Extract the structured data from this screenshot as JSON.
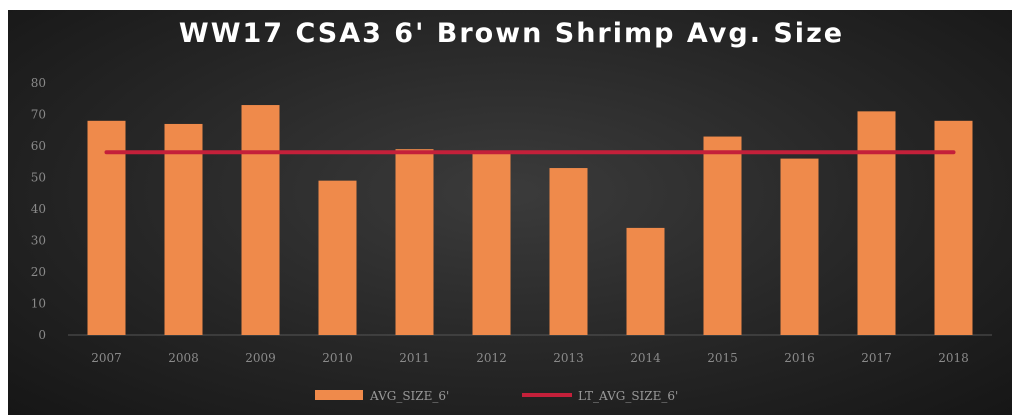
{
  "chart_data": {
    "type": "bar",
    "title": "WW17 CSA3 6' Brown Shrimp Avg. Size",
    "xlabel": "",
    "ylabel": "",
    "categories": [
      "2007",
      "2008",
      "2009",
      "2010",
      "2011",
      "2012",
      "2013",
      "2014",
      "2015",
      "2016",
      "2017",
      "2018"
    ],
    "series": [
      {
        "name": "AVG_SIZE_6'",
        "type": "bar",
        "color": "#ef8a4b",
        "values": [
          68,
          67,
          73,
          49,
          59,
          58,
          53,
          34,
          63,
          56,
          71,
          68
        ]
      },
      {
        "name": "LT_AVG_SIZE_6'",
        "type": "line",
        "color": "#c4203a",
        "values": [
          58,
          58,
          58,
          58,
          58,
          58,
          58,
          58,
          58,
          58,
          58,
          58
        ]
      }
    ],
    "ylim": [
      0,
      80
    ],
    "yticks": [
      0,
      10,
      20,
      30,
      40,
      50,
      60,
      70,
      80
    ],
    "grid": false,
    "legend": "bottom-center",
    "background": "#2a2a2a"
  }
}
